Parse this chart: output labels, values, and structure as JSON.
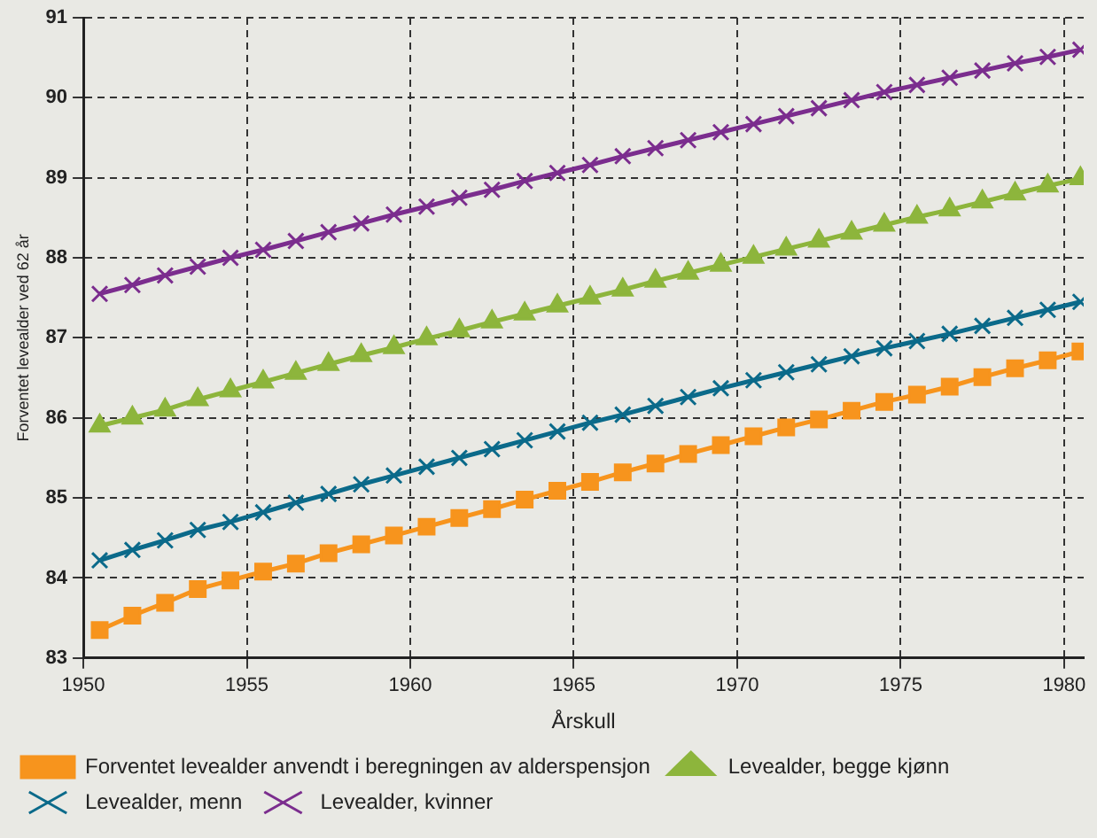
{
  "chart_data": {
    "type": "line",
    "xlabel": "Årskull",
    "ylabel": "Forventet levealder ved 62 år",
    "x": [
      1950.5,
      1951.5,
      1952.5,
      1953.5,
      1954.5,
      1955.5,
      1956.5,
      1957.5,
      1958.5,
      1959.5,
      1960.5,
      1961.5,
      1962.5,
      1963.5,
      1964.5,
      1965.5,
      1966.5,
      1967.5,
      1968.5,
      1969.5,
      1970.5,
      1971.5,
      1972.5,
      1973.5,
      1974.5,
      1975.5,
      1976.5,
      1977.5,
      1978.5,
      1979.5,
      1980.5
    ],
    "xlim": [
      1950,
      1980.6
    ],
    "xticks": [
      1950,
      1955,
      1960,
      1965,
      1970,
      1975,
      1980
    ],
    "ylim": [
      83,
      91
    ],
    "yticks": [
      83,
      84,
      85,
      86,
      87,
      88,
      89,
      90,
      91
    ],
    "grid": true,
    "legend": "bottom",
    "line_style": "solid",
    "series": [
      {
        "name": "Forventet levealder anvendt i beregningen av alderspensjon",
        "color": "#f7941d",
        "marker": "square",
        "values": [
          83.35,
          83.53,
          83.69,
          83.86,
          83.97,
          84.08,
          84.18,
          84.31,
          84.42,
          84.53,
          84.64,
          84.75,
          84.86,
          84.98,
          85.09,
          85.2,
          85.32,
          85.43,
          85.55,
          85.66,
          85.77,
          85.88,
          85.98,
          86.09,
          86.2,
          86.29,
          86.39,
          86.51,
          86.62,
          86.72,
          86.83
        ]
      },
      {
        "name": "Levealder, begge kjønn",
        "color": "#8db53c",
        "marker": "triangle",
        "values": [
          85.9,
          86.0,
          86.1,
          86.23,
          86.34,
          86.45,
          86.56,
          86.67,
          86.78,
          86.88,
          86.99,
          87.09,
          87.2,
          87.3,
          87.4,
          87.5,
          87.6,
          87.71,
          87.81,
          87.91,
          88.01,
          88.11,
          88.21,
          88.31,
          88.41,
          88.51,
          88.6,
          88.7,
          88.8,
          88.9,
          88.99
        ]
      },
      {
        "name": "Levealder, menn",
        "color": "#0b6a8a",
        "marker": "cross",
        "values": [
          84.22,
          84.35,
          84.47,
          84.6,
          84.7,
          84.82,
          84.94,
          85.05,
          85.17,
          85.28,
          85.39,
          85.5,
          85.61,
          85.72,
          85.83,
          85.94,
          86.04,
          86.15,
          86.26,
          86.37,
          86.47,
          86.57,
          86.67,
          86.77,
          86.87,
          86.96,
          87.05,
          87.15,
          87.25,
          87.35,
          87.45
        ]
      },
      {
        "name": "Levealder, kvinner",
        "color": "#7b2d8e",
        "marker": "cross",
        "values": [
          87.55,
          87.66,
          87.78,
          87.89,
          88.0,
          88.1,
          88.21,
          88.32,
          88.43,
          88.54,
          88.64,
          88.75,
          88.85,
          88.96,
          89.06,
          89.16,
          89.27,
          89.37,
          89.47,
          89.57,
          89.67,
          89.77,
          89.87,
          89.97,
          90.07,
          90.16,
          90.25,
          90.34,
          90.43,
          90.51,
          90.6
        ]
      }
    ]
  }
}
